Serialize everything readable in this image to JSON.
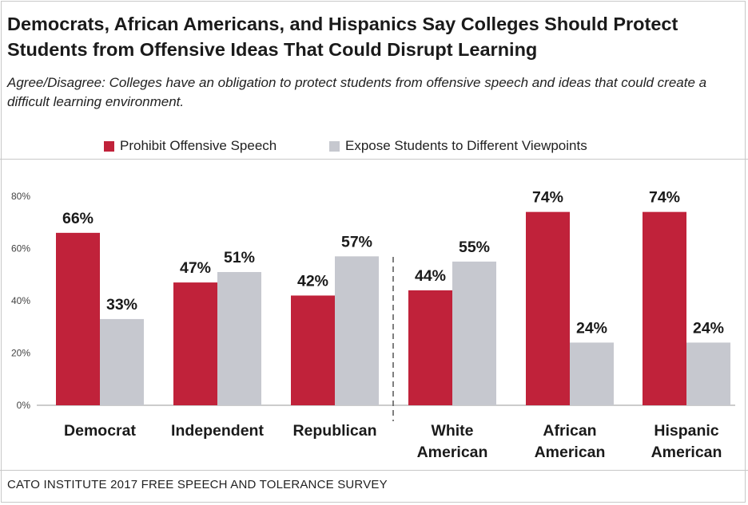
{
  "title": "Democrats, African Americans, and Hispanics Say Colleges Should Protect Students from Offensive Ideas That Could Disrupt Learning",
  "subtitle": "Agree/Disagree: Colleges have an obligation to protect students from offensive speech and ideas that could create a difficult learning environment.",
  "source": "CATO INSTITUTE 2017 FREE SPEECH AND TOLERANCE SURVEY",
  "colors": {
    "prohibit": "#c0223a",
    "expose": "#c6c8cf"
  },
  "chart_data": {
    "type": "bar",
    "categories": [
      [
        "Democrat"
      ],
      [
        "Independent"
      ],
      [
        "Republican"
      ],
      [
        "White",
        "American"
      ],
      [
        "African",
        "American"
      ],
      [
        "Hispanic",
        "American"
      ]
    ],
    "series": [
      {
        "name": "Prohibit Offensive Speech",
        "values": [
          66,
          47,
          42,
          44,
          74,
          74
        ]
      },
      {
        "name": "Expose Students to Different Viewpoints",
        "values": [
          33,
          51,
          57,
          55,
          24,
          24
        ]
      }
    ],
    "value_suffix": "%",
    "yticks": [
      "0%",
      "20%",
      "40%",
      "60%",
      "80%"
    ],
    "ylim": [
      0,
      80
    ],
    "legend_position": "top",
    "grid": false,
    "group_separator_after": 3
  }
}
